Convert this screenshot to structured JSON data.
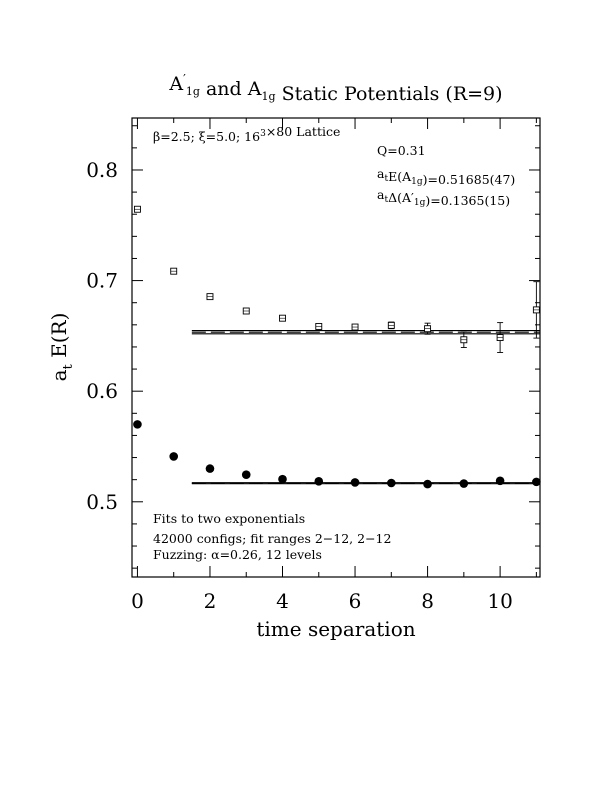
{
  "chart_data": {
    "type": "scatter",
    "title": {
      "parts": [
        {
          "t": "A",
          "sub": "1g",
          "prime": true
        },
        {
          "t": " and "
        },
        {
          "t": "A",
          "sub": "1g"
        },
        {
          "t": " Static Potentials (R=9)"
        }
      ]
    },
    "xlabel": "time separation",
    "ylabel": {
      "main": "a",
      "sub": "t",
      "rest": " E(R)"
    },
    "xlim": [
      -0.15,
      11.1
    ],
    "ylim": [
      0.432,
      0.847
    ],
    "x_ticks": [
      0,
      2,
      4,
      6,
      8,
      10
    ],
    "y_ticks": [
      0.5,
      0.6,
      0.7,
      0.8
    ],
    "x_tick_labels": [
      "0",
      "2",
      "4",
      "6",
      "8",
      "10"
    ],
    "y_tick_labels": [
      "0.5",
      "0.6",
      "0.7",
      "0.8"
    ],
    "grid": false,
    "series": [
      {
        "marker": "open-square",
        "points": [
          {
            "x": 0,
            "y": 0.7645,
            "err": 0.0005
          },
          {
            "x": 1,
            "y": 0.7085,
            "err": 0.0005
          },
          {
            "x": 2,
            "y": 0.6855,
            "err": 0.0006
          },
          {
            "x": 3,
            "y": 0.6725,
            "err": 0.0008
          },
          {
            "x": 4,
            "y": 0.666,
            "err": 0.001
          },
          {
            "x": 5,
            "y": 0.6585,
            "err": 0.0015
          },
          {
            "x": 6,
            "y": 0.658,
            "err": 0.002
          },
          {
            "x": 7,
            "y": 0.6595,
            "err": 0.003
          },
          {
            "x": 8,
            "y": 0.6565,
            "err": 0.005
          },
          {
            "x": 9,
            "y": 0.6465,
            "err": 0.007
          },
          {
            "x": 10,
            "y": 0.6485,
            "err": 0.0135
          },
          {
            "x": 11,
            "y": 0.6735,
            "err": 0.0255
          }
        ]
      },
      {
        "marker": "filled-circle",
        "points": [
          {
            "x": 0,
            "y": 0.57
          },
          {
            "x": 1,
            "y": 0.541
          },
          {
            "x": 2,
            "y": 0.53
          },
          {
            "x": 3,
            "y": 0.5245
          },
          {
            "x": 4,
            "y": 0.5205
          },
          {
            "x": 5,
            "y": 0.5185
          },
          {
            "x": 6,
            "y": 0.5175
          },
          {
            "x": 7,
            "y": 0.517
          },
          {
            "x": 8,
            "y": 0.516
          },
          {
            "x": 9,
            "y": 0.5165
          },
          {
            "x": 10,
            "y": 0.519
          },
          {
            "x": 11,
            "y": 0.518
          }
        ]
      }
    ],
    "fit_bands": [
      {
        "x_range": [
          1.5,
          11.1
        ],
        "center": 0.65335,
        "err": 0.0015
      },
      {
        "x_range": [
          1.5,
          11.1
        ],
        "center": 0.51685,
        "err": 0.00047
      }
    ],
    "annotations": {
      "top_left": {
        "parts": [
          {
            "t": "β=2.5; ξ=5.0; 16"
          },
          {
            "t": "3",
            "sup": true
          },
          {
            "t": "×80 Lattice"
          }
        ]
      },
      "top_right": [
        {
          "parts": [
            {
              "t": "Q=0.31"
            }
          ]
        },
        {
          "parts": [
            {
              "t": "a"
            },
            {
              "t": "t",
              "sub": true
            },
            {
              "t": "E(A"
            },
            {
              "t": "1g",
              "sub": true
            },
            {
              "t": ")=0.51685(47)"
            }
          ]
        },
        {
          "parts": [
            {
              "t": "a"
            },
            {
              "t": "t",
              "sub": true
            },
            {
              "t": "Δ(A′"
            },
            {
              "t": "1g",
              "sub": true
            },
            {
              "t": ")=0.1365(15)"
            }
          ]
        }
      ],
      "bottom_left": [
        "Fits to two exponentials",
        "42000 configs; fit ranges 2−12, 2−12",
        "Fuzzing: α=0.26, 12 levels"
      ]
    }
  }
}
